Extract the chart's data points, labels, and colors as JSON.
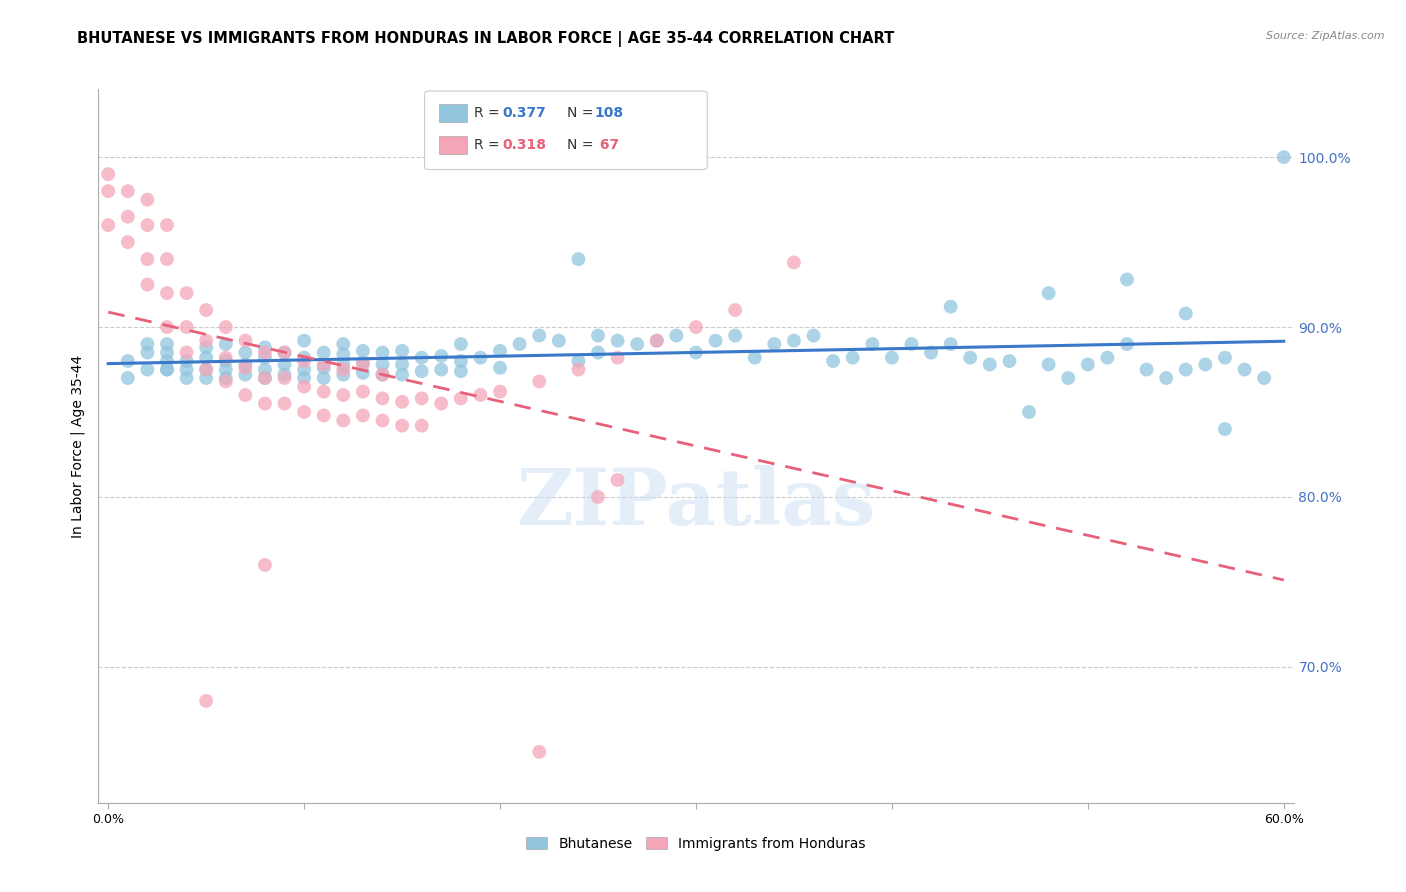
{
  "title": "BHUTANESE VS IMMIGRANTS FROM HONDURAS IN LABOR FORCE | AGE 35-44 CORRELATION CHART",
  "source_text": "Source: ZipAtlas.com",
  "ylabel": "In Labor Force | Age 35-44",
  "xlim": [
    -0.005,
    0.605
  ],
  "ylim": [
    0.62,
    1.04
  ],
  "xtick_positions": [
    0.0,
    0.1,
    0.2,
    0.3,
    0.4,
    0.5,
    0.6
  ],
  "xticklabels": [
    "0.0%",
    "",
    "",
    "",
    "",
    "",
    "60.0%"
  ],
  "ytick_positions": [
    0.7,
    0.8,
    0.9,
    1.0
  ],
  "ytick_labels": [
    "70.0%",
    "80.0%",
    "90.0%",
    "100.0%"
  ],
  "blue_color": "#92c5de",
  "pink_color": "#f4a6b8",
  "blue_line_color": "#3a78c9",
  "pink_line_color": "#e8607a",
  "right_axis_color": "#4472c4",
  "grid_color": "#cccccc",
  "axis_color": "#aaaaaa",
  "watermark": "ZIPatlas",
  "blue_label": "Bhutanese",
  "pink_label": "Immigrants from Honduras",
  "legend_r1": "0.377",
  "legend_n1": "108",
  "legend_r2": "0.318",
  "legend_n2": " 67",
  "blue_scatter_x": [
    0.01,
    0.01,
    0.02,
    0.02,
    0.02,
    0.03,
    0.03,
    0.03,
    0.03,
    0.03,
    0.04,
    0.04,
    0.04,
    0.05,
    0.05,
    0.05,
    0.05,
    0.06,
    0.06,
    0.06,
    0.06,
    0.07,
    0.07,
    0.07,
    0.08,
    0.08,
    0.08,
    0.08,
    0.09,
    0.09,
    0.09,
    0.1,
    0.1,
    0.1,
    0.1,
    0.11,
    0.11,
    0.11,
    0.12,
    0.12,
    0.12,
    0.12,
    0.13,
    0.13,
    0.13,
    0.14,
    0.14,
    0.14,
    0.15,
    0.15,
    0.15,
    0.16,
    0.16,
    0.17,
    0.17,
    0.18,
    0.18,
    0.18,
    0.19,
    0.2,
    0.2,
    0.21,
    0.22,
    0.23,
    0.24,
    0.24,
    0.25,
    0.25,
    0.26,
    0.27,
    0.28,
    0.29,
    0.3,
    0.31,
    0.32,
    0.33,
    0.34,
    0.35,
    0.36,
    0.37,
    0.38,
    0.39,
    0.4,
    0.41,
    0.42,
    0.43,
    0.44,
    0.45,
    0.46,
    0.47,
    0.48,
    0.49,
    0.5,
    0.51,
    0.52,
    0.53,
    0.54,
    0.55,
    0.56,
    0.57,
    0.58,
    0.59,
    0.43,
    0.48,
    0.52,
    0.55,
    0.57,
    0.6
  ],
  "blue_scatter_y": [
    0.88,
    0.87,
    0.875,
    0.885,
    0.89,
    0.875,
    0.88,
    0.885,
    0.89,
    0.875,
    0.87,
    0.875,
    0.88,
    0.87,
    0.875,
    0.882,
    0.888,
    0.87,
    0.875,
    0.88,
    0.89,
    0.872,
    0.878,
    0.885,
    0.87,
    0.875,
    0.882,
    0.888,
    0.872,
    0.878,
    0.885,
    0.87,
    0.875,
    0.882,
    0.892,
    0.87,
    0.876,
    0.885,
    0.872,
    0.878,
    0.884,
    0.89,
    0.873,
    0.879,
    0.886,
    0.872,
    0.878,
    0.885,
    0.872,
    0.878,
    0.886,
    0.874,
    0.882,
    0.875,
    0.883,
    0.874,
    0.88,
    0.89,
    0.882,
    0.876,
    0.886,
    0.89,
    0.895,
    0.892,
    0.94,
    0.88,
    0.885,
    0.895,
    0.892,
    0.89,
    0.892,
    0.895,
    0.885,
    0.892,
    0.895,
    0.882,
    0.89,
    0.892,
    0.895,
    0.88,
    0.882,
    0.89,
    0.882,
    0.89,
    0.885,
    0.89,
    0.882,
    0.878,
    0.88,
    0.85,
    0.878,
    0.87,
    0.878,
    0.882,
    0.89,
    0.875,
    0.87,
    0.875,
    0.878,
    0.882,
    0.875,
    0.87,
    0.912,
    0.92,
    0.928,
    0.908,
    0.84,
    1.0
  ],
  "pink_scatter_x": [
    0.0,
    0.0,
    0.0,
    0.01,
    0.01,
    0.01,
    0.02,
    0.02,
    0.02,
    0.02,
    0.03,
    0.03,
    0.03,
    0.03,
    0.04,
    0.04,
    0.04,
    0.05,
    0.05,
    0.05,
    0.06,
    0.06,
    0.06,
    0.07,
    0.07,
    0.07,
    0.08,
    0.08,
    0.08,
    0.09,
    0.09,
    0.09,
    0.1,
    0.1,
    0.1,
    0.11,
    0.11,
    0.11,
    0.12,
    0.12,
    0.12,
    0.13,
    0.13,
    0.13,
    0.14,
    0.14,
    0.14,
    0.15,
    0.15,
    0.16,
    0.16,
    0.17,
    0.18,
    0.19,
    0.2,
    0.22,
    0.24,
    0.26,
    0.28,
    0.3,
    0.32,
    0.35,
    0.05,
    0.08,
    0.25,
    0.26,
    0.22
  ],
  "pink_scatter_y": [
    0.96,
    0.98,
    0.99,
    0.95,
    0.965,
    0.98,
    0.925,
    0.94,
    0.96,
    0.975,
    0.9,
    0.92,
    0.94,
    0.96,
    0.885,
    0.9,
    0.92,
    0.875,
    0.892,
    0.91,
    0.868,
    0.882,
    0.9,
    0.86,
    0.876,
    0.892,
    0.855,
    0.87,
    0.885,
    0.855,
    0.87,
    0.885,
    0.85,
    0.865,
    0.88,
    0.848,
    0.862,
    0.878,
    0.845,
    0.86,
    0.875,
    0.848,
    0.862,
    0.878,
    0.845,
    0.858,
    0.872,
    0.842,
    0.856,
    0.842,
    0.858,
    0.855,
    0.858,
    0.86,
    0.862,
    0.868,
    0.875,
    0.882,
    0.892,
    0.9,
    0.91,
    0.938,
    0.68,
    0.76,
    0.8,
    0.81,
    0.65
  ]
}
